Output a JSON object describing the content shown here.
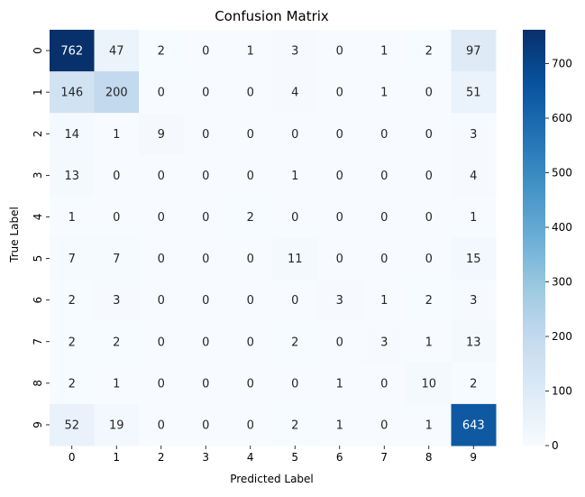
{
  "chart_data": {
    "type": "heatmap",
    "title": "Confusion Matrix",
    "xlabel": "Predicted Label",
    "ylabel": "True Label",
    "x_categories": [
      "0",
      "1",
      "2",
      "3",
      "4",
      "5",
      "6",
      "7",
      "8",
      "9"
    ],
    "y_categories": [
      "0",
      "1",
      "2",
      "3",
      "4",
      "5",
      "6",
      "7",
      "8",
      "9"
    ],
    "values": [
      [
        762,
        47,
        2,
        0,
        1,
        3,
        0,
        1,
        2,
        97
      ],
      [
        146,
        200,
        0,
        0,
        0,
        4,
        0,
        1,
        0,
        51
      ],
      [
        14,
        1,
        9,
        0,
        0,
        0,
        0,
        0,
        0,
        3
      ],
      [
        13,
        0,
        0,
        0,
        0,
        1,
        0,
        0,
        0,
        4
      ],
      [
        1,
        0,
        0,
        0,
        2,
        0,
        0,
        0,
        0,
        1
      ],
      [
        7,
        7,
        0,
        0,
        0,
        11,
        0,
        0,
        0,
        15
      ],
      [
        2,
        3,
        0,
        0,
        0,
        0,
        3,
        1,
        2,
        3
      ],
      [
        2,
        2,
        0,
        0,
        0,
        2,
        0,
        3,
        1,
        13
      ],
      [
        2,
        1,
        0,
        0,
        0,
        0,
        1,
        0,
        10,
        2
      ],
      [
        52,
        19,
        0,
        0,
        0,
        2,
        1,
        0,
        1,
        643
      ]
    ],
    "colorbar": {
      "colormap": "Blues",
      "range": [
        0,
        762
      ],
      "ticks": [
        0,
        100,
        200,
        300,
        400,
        500,
        600,
        700
      ]
    }
  }
}
